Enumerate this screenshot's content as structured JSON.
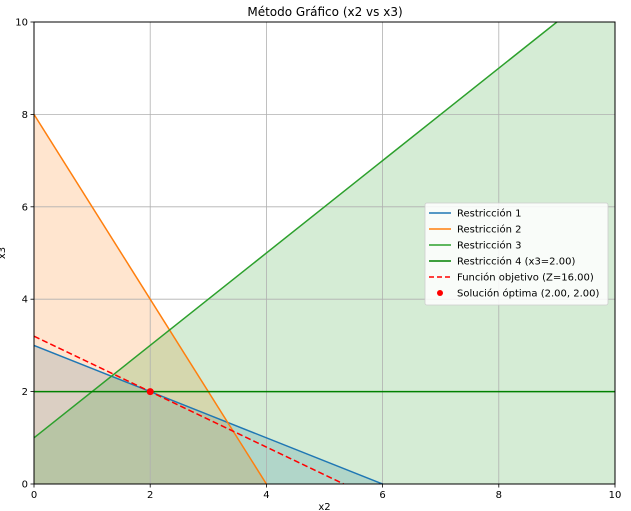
{
  "chart_data": {
    "type": "line",
    "title": "Método Gráfico (x2 vs x3)",
    "xlabel": "x2",
    "ylabel": "x3",
    "xlim": [
      0,
      10
    ],
    "ylim": [
      0,
      10
    ],
    "xticks": [
      0,
      2,
      4,
      6,
      8,
      10
    ],
    "yticks": [
      0,
      2,
      4,
      6,
      8,
      10
    ],
    "grid": true,
    "legend_position": "center-right",
    "series": [
      {
        "name": "Restricción 1",
        "color": "#1f77b4",
        "style": "solid",
        "x": [
          0,
          6
        ],
        "y": [
          3,
          0
        ],
        "fill": "below",
        "fill_color": "#1f77b4"
      },
      {
        "name": "Restricción 2",
        "color": "#ff7f0e",
        "style": "solid",
        "x": [
          0,
          4
        ],
        "y": [
          8,
          0
        ],
        "fill": "below",
        "fill_color": "#ff7f0e"
      },
      {
        "name": "Restricción 3",
        "color": "#2ca02c",
        "style": "solid",
        "x": [
          0,
          9
        ],
        "y": [
          1,
          10
        ],
        "fill": "below",
        "fill_color": "#2ca02c"
      },
      {
        "name": "Restricción 4 (x3=2.00)",
        "color": "#008000",
        "style": "solid",
        "x": [
          0,
          10
        ],
        "y": [
          2,
          2
        ],
        "fill": "none"
      },
      {
        "name": "Función objetivo (Z=16.00)",
        "color": "#ff0000",
        "style": "dashed",
        "x": [
          0,
          5.333
        ],
        "y": [
          3.2,
          0
        ],
        "fill": "none"
      }
    ],
    "points": [
      {
        "name": "Solución óptima (2.00, 2.00)",
        "color": "#ff0000",
        "x": 2,
        "y": 2
      }
    ],
    "reference_line": {
      "y": 0,
      "color": "#555555",
      "style": "dashed"
    }
  }
}
